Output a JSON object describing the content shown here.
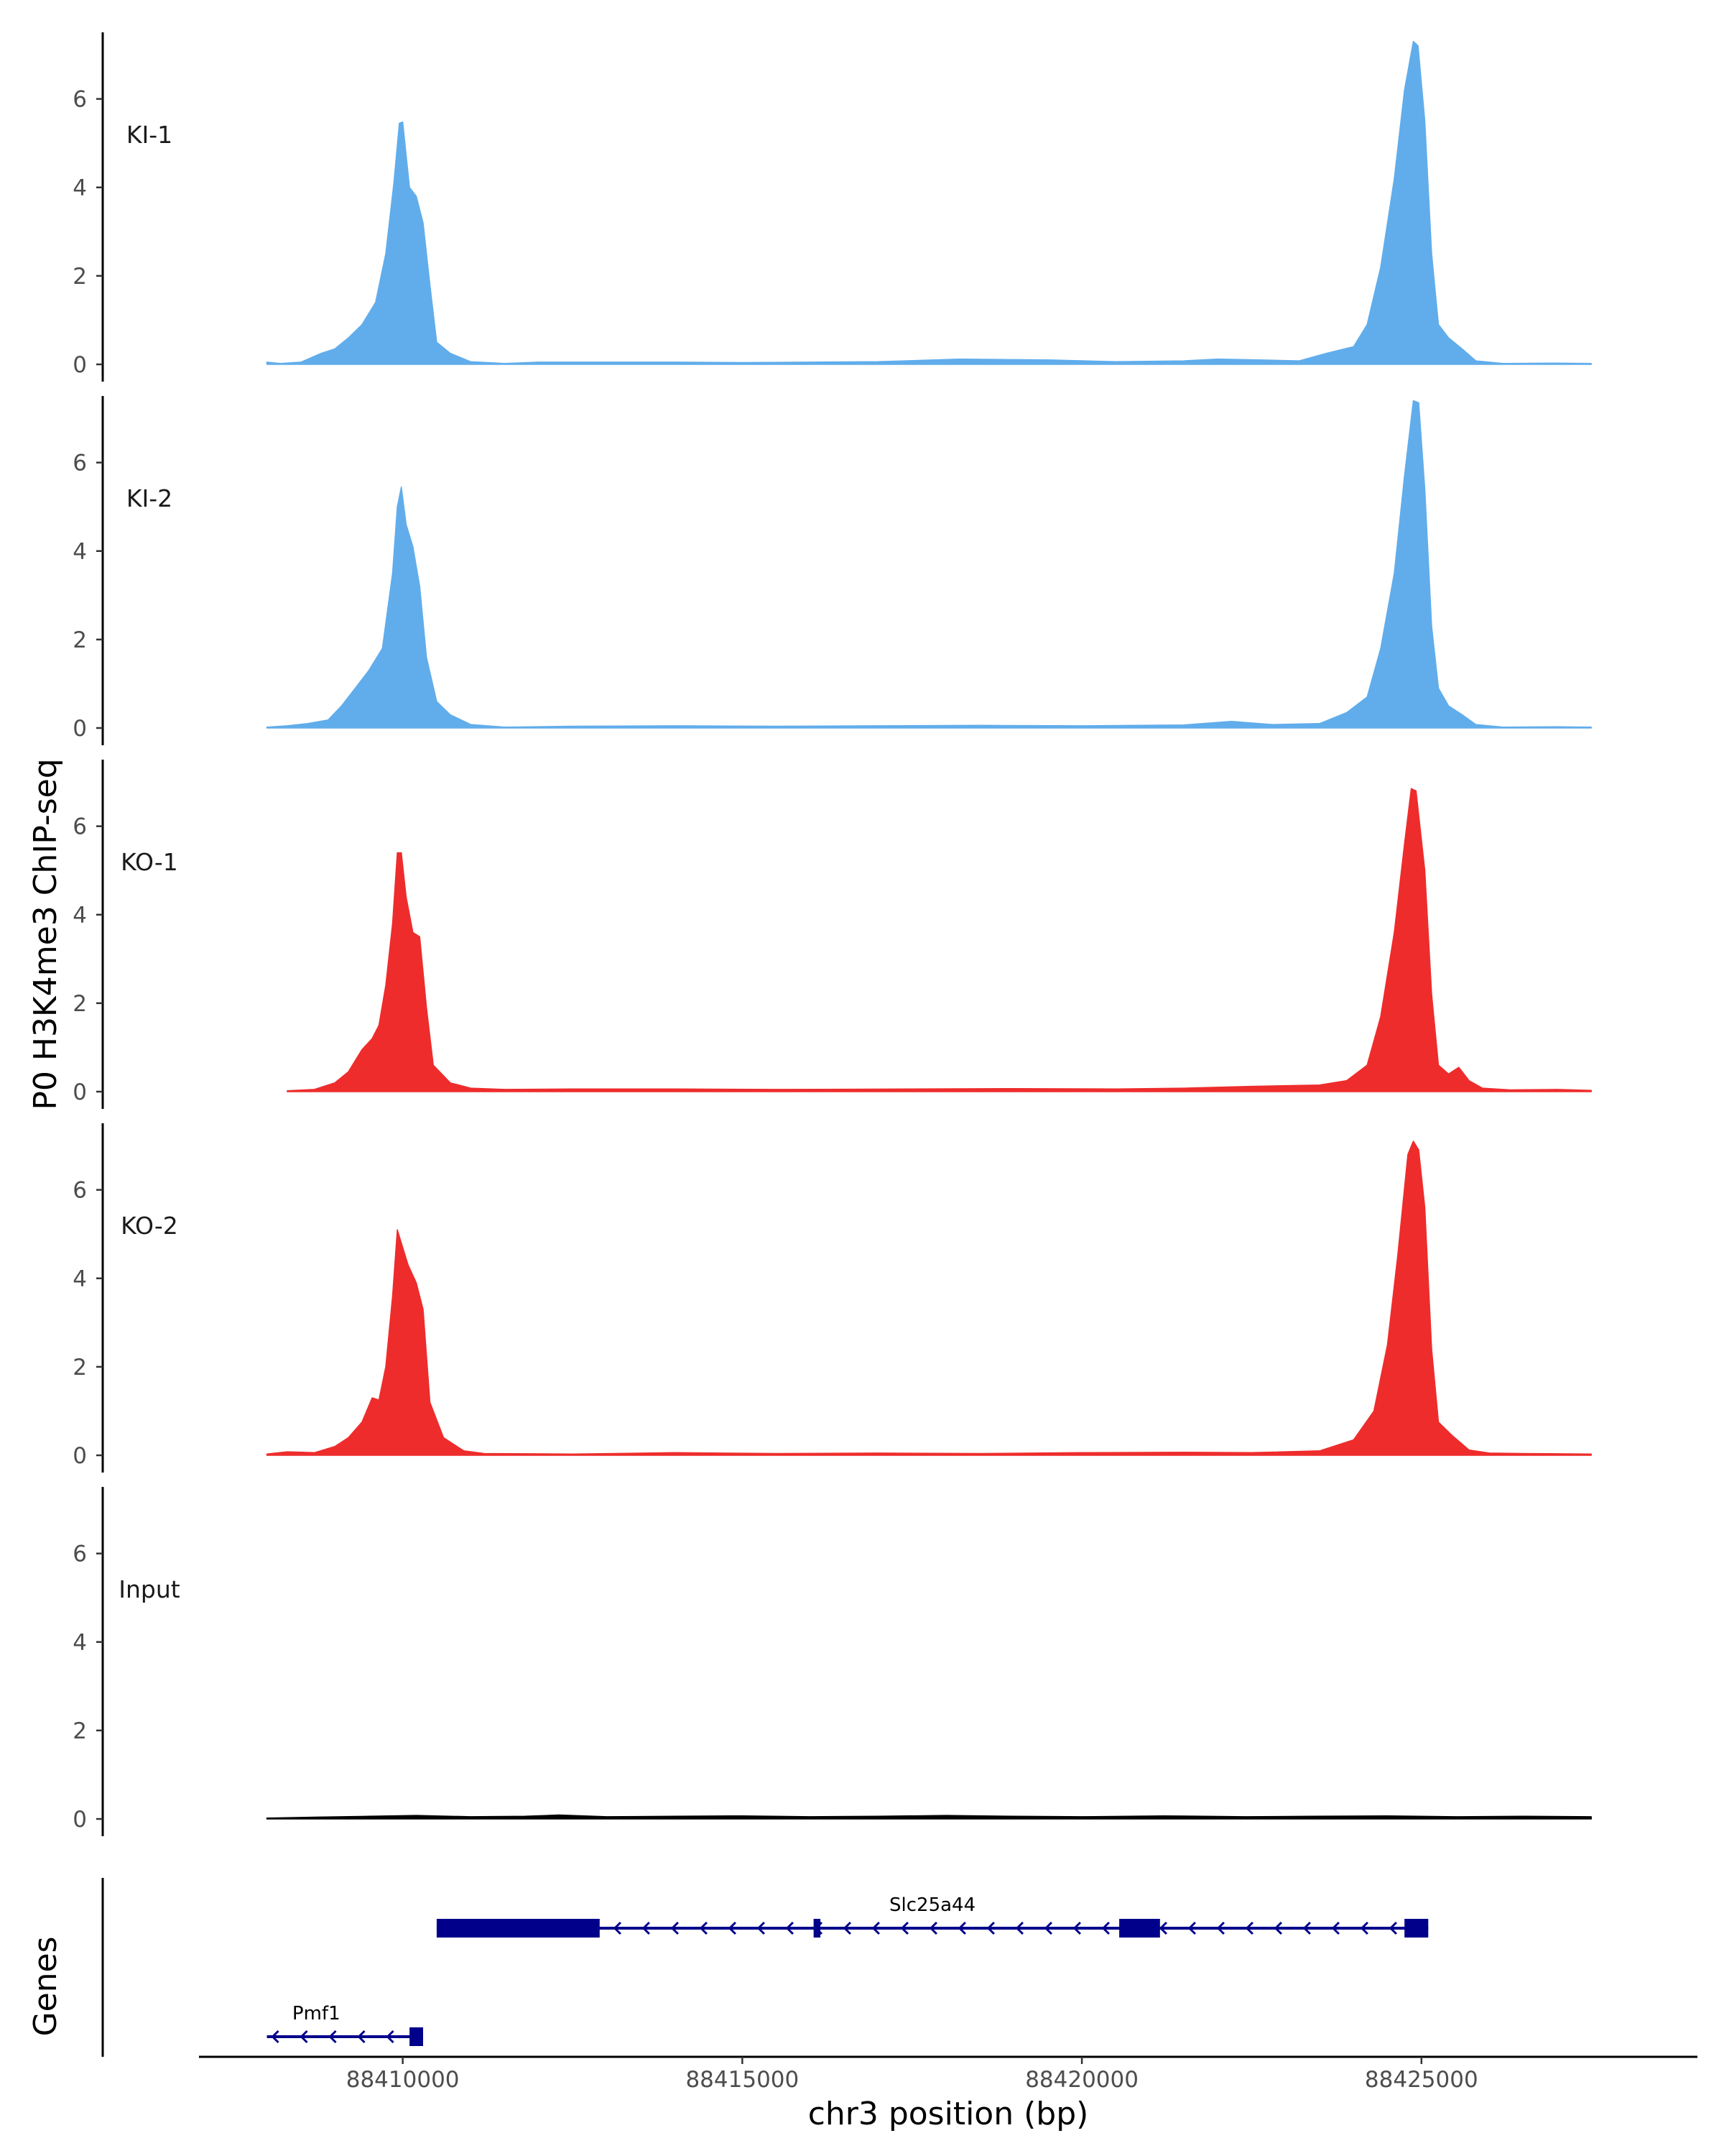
{
  "chart_data": {
    "type": "area",
    "ylabel": "P0 H3K4me3 ChIP-seq",
    "xlabel": "chr3 position (bp)",
    "genes_axis_label": "Genes",
    "x_range": [
      88407000,
      88429000
    ],
    "data_x_range": [
      88408000,
      88427500
    ],
    "ylim": [
      0,
      7.7
    ],
    "y_ticks": [
      {
        "value": 0,
        "label": "0"
      },
      {
        "value": 2,
        "label": "2"
      },
      {
        "value": 4,
        "label": "4"
      },
      {
        "value": 6,
        "label": "6"
      }
    ],
    "x_ticks": [
      {
        "value": 88410000,
        "label": "88410000"
      },
      {
        "value": 88415000,
        "label": "88415000"
      },
      {
        "value": 88420000,
        "label": "88420000"
      },
      {
        "value": 88425000,
        "label": "88425000"
      }
    ],
    "tracks": [
      {
        "name": "KI-1",
        "color": "#61ADEB",
        "points": [
          [
            88408000,
            0.05
          ],
          [
            88408200,
            0.02
          ],
          [
            88408500,
            0.05
          ],
          [
            88408800,
            0.25
          ],
          [
            88409000,
            0.35
          ],
          [
            88409200,
            0.6
          ],
          [
            88409400,
            0.9
          ],
          [
            88409600,
            1.4
          ],
          [
            88409750,
            2.5
          ],
          [
            88409870,
            4.1
          ],
          [
            88409950,
            5.45
          ],
          [
            88410000,
            5.48
          ],
          [
            88410100,
            4.0
          ],
          [
            88410200,
            3.8
          ],
          [
            88410300,
            3.2
          ],
          [
            88410400,
            1.8
          ],
          [
            88410500,
            0.5
          ],
          [
            88410700,
            0.25
          ],
          [
            88411000,
            0.06
          ],
          [
            88411500,
            0.02
          ],
          [
            88412000,
            0.05
          ],
          [
            88413000,
            0.05
          ],
          [
            88414000,
            0.05
          ],
          [
            88415000,
            0.04
          ],
          [
            88416000,
            0.05
          ],
          [
            88417000,
            0.06
          ],
          [
            88418200,
            0.12
          ],
          [
            88419500,
            0.1
          ],
          [
            88420500,
            0.06
          ],
          [
            88421500,
            0.08
          ],
          [
            88422000,
            0.12
          ],
          [
            88422600,
            0.1
          ],
          [
            88423200,
            0.08
          ],
          [
            88423600,
            0.25
          ],
          [
            88424000,
            0.4
          ],
          [
            88424200,
            0.9
          ],
          [
            88424400,
            2.2
          ],
          [
            88424600,
            4.2
          ],
          [
            88424750,
            6.2
          ],
          [
            88424880,
            7.3
          ],
          [
            88424950,
            7.2
          ],
          [
            88425050,
            5.5
          ],
          [
            88425150,
            2.5
          ],
          [
            88425250,
            0.9
          ],
          [
            88425400,
            0.6
          ],
          [
            88425600,
            0.35
          ],
          [
            88425800,
            0.08
          ],
          [
            88426200,
            0.02
          ],
          [
            88427000,
            0.03
          ],
          [
            88427500,
            0.02
          ]
        ]
      },
      {
        "name": "KI-2",
        "color": "#61ADEB",
        "points": [
          [
            88408000,
            0.02
          ],
          [
            88408300,
            0.05
          ],
          [
            88408600,
            0.1
          ],
          [
            88408900,
            0.18
          ],
          [
            88409100,
            0.5
          ],
          [
            88409300,
            0.9
          ],
          [
            88409500,
            1.3
          ],
          [
            88409700,
            1.8
          ],
          [
            88409850,
            3.5
          ],
          [
            88409920,
            5.0
          ],
          [
            88409980,
            5.45
          ],
          [
            88410050,
            4.6
          ],
          [
            88410150,
            4.1
          ],
          [
            88410250,
            3.2
          ],
          [
            88410350,
            1.6
          ],
          [
            88410500,
            0.6
          ],
          [
            88410700,
            0.3
          ],
          [
            88411000,
            0.08
          ],
          [
            88411500,
            0.02
          ],
          [
            88412500,
            0.04
          ],
          [
            88414000,
            0.05
          ],
          [
            88415500,
            0.04
          ],
          [
            88417000,
            0.05
          ],
          [
            88418500,
            0.06
          ],
          [
            88420000,
            0.05
          ],
          [
            88421500,
            0.07
          ],
          [
            88422200,
            0.15
          ],
          [
            88422800,
            0.08
          ],
          [
            88423500,
            0.1
          ],
          [
            88423900,
            0.35
          ],
          [
            88424200,
            0.7
          ],
          [
            88424400,
            1.8
          ],
          [
            88424600,
            3.5
          ],
          [
            88424750,
            5.7
          ],
          [
            88424880,
            7.4
          ],
          [
            88424960,
            7.35
          ],
          [
            88425050,
            5.4
          ],
          [
            88425150,
            2.3
          ],
          [
            88425250,
            0.9
          ],
          [
            88425400,
            0.5
          ],
          [
            88425600,
            0.3
          ],
          [
            88425800,
            0.08
          ],
          [
            88426200,
            0.02
          ],
          [
            88427000,
            0.03
          ],
          [
            88427500,
            0.02
          ]
        ]
      },
      {
        "name": "KO-1",
        "color": "#EE2C2C",
        "points": [
          [
            88408300,
            0.02
          ],
          [
            88408700,
            0.05
          ],
          [
            88409000,
            0.2
          ],
          [
            88409200,
            0.45
          ],
          [
            88409400,
            0.95
          ],
          [
            88409550,
            1.2
          ],
          [
            88409650,
            1.5
          ],
          [
            88409750,
            2.4
          ],
          [
            88409850,
            3.8
          ],
          [
            88409920,
            5.4
          ],
          [
            88409980,
            5.4
          ],
          [
            88410050,
            4.4
          ],
          [
            88410150,
            3.6
          ],
          [
            88410250,
            3.5
          ],
          [
            88410350,
            1.9
          ],
          [
            88410450,
            0.6
          ],
          [
            88410700,
            0.2
          ],
          [
            88411000,
            0.08
          ],
          [
            88411500,
            0.05
          ],
          [
            88412500,
            0.06
          ],
          [
            88414000,
            0.06
          ],
          [
            88415500,
            0.05
          ],
          [
            88417500,
            0.06
          ],
          [
            88419000,
            0.07
          ],
          [
            88420500,
            0.06
          ],
          [
            88421500,
            0.08
          ],
          [
            88422500,
            0.12
          ],
          [
            88423500,
            0.15
          ],
          [
            88423900,
            0.25
          ],
          [
            88424200,
            0.6
          ],
          [
            88424400,
            1.7
          ],
          [
            88424600,
            3.6
          ],
          [
            88424750,
            5.6
          ],
          [
            88424850,
            6.85
          ],
          [
            88424920,
            6.8
          ],
          [
            88425050,
            5.0
          ],
          [
            88425150,
            2.2
          ],
          [
            88425250,
            0.6
          ],
          [
            88425400,
            0.4
          ],
          [
            88425550,
            0.55
          ],
          [
            88425700,
            0.25
          ],
          [
            88425900,
            0.08
          ],
          [
            88426300,
            0.04
          ],
          [
            88427000,
            0.05
          ],
          [
            88427500,
            0.03
          ]
        ]
      },
      {
        "name": "KO-2",
        "color": "#EE2C2C",
        "points": [
          [
            88408000,
            0.03
          ],
          [
            88408300,
            0.08
          ],
          [
            88408700,
            0.06
          ],
          [
            88409000,
            0.2
          ],
          [
            88409200,
            0.4
          ],
          [
            88409400,
            0.75
          ],
          [
            88409550,
            1.3
          ],
          [
            88409650,
            1.25
          ],
          [
            88409750,
            2.0
          ],
          [
            88409850,
            3.6
          ],
          [
            88409920,
            5.1
          ],
          [
            88410000,
            4.7
          ],
          [
            88410080,
            4.3
          ],
          [
            88410200,
            3.9
          ],
          [
            88410300,
            3.3
          ],
          [
            88410400,
            1.2
          ],
          [
            88410600,
            0.4
          ],
          [
            88410900,
            0.1
          ],
          [
            88411200,
            0.04
          ],
          [
            88412500,
            0.03
          ],
          [
            88414000,
            0.06
          ],
          [
            88415500,
            0.04
          ],
          [
            88417000,
            0.05
          ],
          [
            88418500,
            0.04
          ],
          [
            88420000,
            0.06
          ],
          [
            88421500,
            0.07
          ],
          [
            88422500,
            0.06
          ],
          [
            88423500,
            0.1
          ],
          [
            88424000,
            0.35
          ],
          [
            88424300,
            1.0
          ],
          [
            88424500,
            2.5
          ],
          [
            88424650,
            4.5
          ],
          [
            88424800,
            6.8
          ],
          [
            88424880,
            7.1
          ],
          [
            88424960,
            6.9
          ],
          [
            88425050,
            5.6
          ],
          [
            88425150,
            2.4
          ],
          [
            88425250,
            0.75
          ],
          [
            88425450,
            0.45
          ],
          [
            88425700,
            0.12
          ],
          [
            88426000,
            0.05
          ],
          [
            88426500,
            0.04
          ],
          [
            88427500,
            0.03
          ]
        ]
      },
      {
        "name": "Input",
        "color": "#000000",
        "points": [
          [
            88408000,
            0.02
          ],
          [
            88408700,
            0.04
          ],
          [
            88409500,
            0.06
          ],
          [
            88410200,
            0.08
          ],
          [
            88411000,
            0.05
          ],
          [
            88411800,
            0.06
          ],
          [
            88412300,
            0.09
          ],
          [
            88413000,
            0.05
          ],
          [
            88414000,
            0.06
          ],
          [
            88415000,
            0.07
          ],
          [
            88416000,
            0.05
          ],
          [
            88417000,
            0.06
          ],
          [
            88418000,
            0.08
          ],
          [
            88419000,
            0.06
          ],
          [
            88420000,
            0.05
          ],
          [
            88421200,
            0.07
          ],
          [
            88422400,
            0.05
          ],
          [
            88423400,
            0.06
          ],
          [
            88424500,
            0.07
          ],
          [
            88425500,
            0.05
          ],
          [
            88426500,
            0.06
          ],
          [
            88427500,
            0.05
          ]
        ]
      }
    ],
    "genes": [
      {
        "name": "Slc25a44",
        "strand": "-",
        "color": "#00008B",
        "row": 1,
        "start": 88410500,
        "end": 88425100,
        "exons": [
          [
            88410500,
            88412900
          ],
          [
            88416050,
            88416150
          ],
          [
            88420550,
            88421150
          ],
          [
            88424750,
            88425100
          ]
        ]
      },
      {
        "name": "Pmf1",
        "strand": "-",
        "color": "#00008B",
        "row": 2,
        "start": 88408000,
        "end": 88410300,
        "exons": [
          [
            88410100,
            88410300
          ]
        ]
      }
    ]
  }
}
